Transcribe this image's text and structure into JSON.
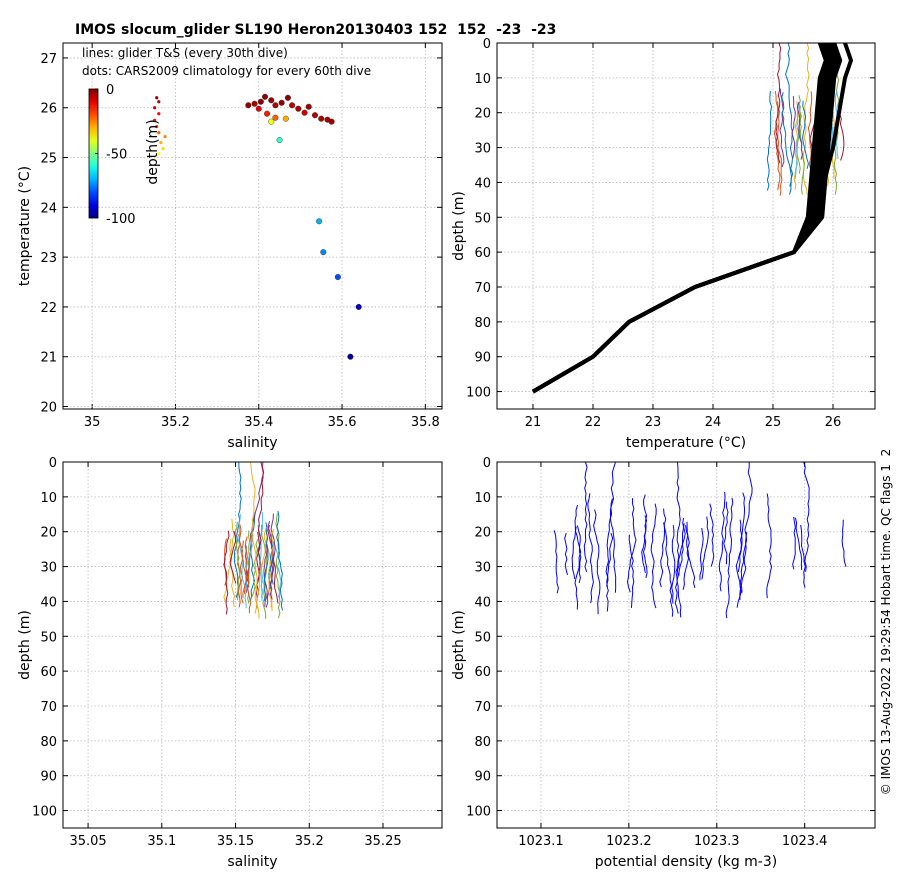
{
  "title": "IMOS slocum_glider SL190 Heron20130403 152  152  -23  -23",
  "side_text": "© IMOS 13-Aug-2022 19:29:54 Hobart time. QC flags 1  2",
  "chart_data": [
    {
      "type": "scatter",
      "id": "ts",
      "xlabel": "salinity",
      "ylabel": "temperature (°C)",
      "xlim": [
        34.93,
        35.84
      ],
      "ylim": [
        19.95,
        27.3
      ],
      "xticks": [
        35,
        35.2,
        35.4,
        35.6,
        35.8
      ],
      "xtick_labels": [
        "35",
        "35.2",
        "35.4",
        "35.6",
        "35.8"
      ],
      "yticks": [
        20,
        21,
        22,
        23,
        24,
        25,
        26,
        27
      ],
      "ytick_labels": [
        "20",
        "21",
        "22",
        "23",
        "24",
        "25",
        "26",
        "27"
      ],
      "legend": [
        "lines: glider T&S (every 30th dive)",
        "dots: CARS2009 climatology for every 60th dive"
      ],
      "colorbar": {
        "label": "depth(m)",
        "ticks": [
          0,
          -50,
          -100
        ],
        "tick_labels": [
          "0",
          "-50",
          "-100"
        ],
        "range": [
          -100,
          0
        ]
      },
      "climatology": [
        {
          "s": 35.375,
          "t": 26.05,
          "d": -2
        },
        {
          "s": 35.39,
          "t": 26.08,
          "d": -4
        },
        {
          "s": 35.405,
          "t": 26.12,
          "d": -1
        },
        {
          "s": 35.415,
          "t": 26.22,
          "d": -2
        },
        {
          "s": 35.43,
          "t": 26.15,
          "d": -3
        },
        {
          "s": 35.44,
          "t": 26.05,
          "d": -5
        },
        {
          "s": 35.455,
          "t": 26.1,
          "d": -2
        },
        {
          "s": 35.47,
          "t": 26.2,
          "d": -1
        },
        {
          "s": 35.48,
          "t": 26.05,
          "d": -6
        },
        {
          "s": 35.495,
          "t": 25.98,
          "d": -4
        },
        {
          "s": 35.51,
          "t": 25.9,
          "d": -8
        },
        {
          "s": 35.52,
          "t": 26.02,
          "d": -3
        },
        {
          "s": 35.535,
          "t": 25.85,
          "d": -6
        },
        {
          "s": 35.55,
          "t": 25.78,
          "d": -5
        },
        {
          "s": 35.565,
          "t": 25.76,
          "d": -4
        },
        {
          "s": 35.575,
          "t": 25.72,
          "d": -3
        },
        {
          "s": 35.4,
          "t": 25.98,
          "d": -10
        },
        {
          "s": 35.42,
          "t": 25.88,
          "d": -15
        },
        {
          "s": 35.44,
          "t": 25.8,
          "d": -22
        },
        {
          "s": 35.465,
          "t": 25.78,
          "d": -30
        },
        {
          "s": 35.43,
          "t": 25.72,
          "d": -38
        },
        {
          "s": 35.45,
          "t": 25.35,
          "d": -58
        },
        {
          "s": 35.545,
          "t": 23.72,
          "d": -70
        },
        {
          "s": 35.555,
          "t": 23.1,
          "d": -74
        },
        {
          "s": 35.59,
          "t": 22.6,
          "d": -80
        },
        {
          "s": 35.64,
          "t": 22.0,
          "d": -92
        },
        {
          "s": 35.62,
          "t": 21.0,
          "d": -97
        }
      ],
      "glider": [
        {
          "s": 35.155,
          "t": 26.2,
          "d": -2
        },
        {
          "s": 35.16,
          "t": 26.12,
          "d": -5
        },
        {
          "s": 35.15,
          "t": 26.0,
          "d": -8
        },
        {
          "s": 35.16,
          "t": 25.88,
          "d": -12
        },
        {
          "s": 35.15,
          "t": 25.75,
          "d": -15
        },
        {
          "s": 35.155,
          "t": 25.62,
          "d": -18
        },
        {
          "s": 35.16,
          "t": 25.5,
          "d": -22
        },
        {
          "s": 35.175,
          "t": 25.42,
          "d": -26
        },
        {
          "s": 35.165,
          "t": 25.3,
          "d": -30
        },
        {
          "s": 35.17,
          "t": 25.18,
          "d": -34
        },
        {
          "s": 35.16,
          "t": 25.08,
          "d": -38
        }
      ]
    },
    {
      "type": "line",
      "id": "temp",
      "xlabel": "temperature (°C)",
      "ylabel": "depth (m)",
      "xlim": [
        20.4,
        26.7
      ],
      "ylim": [
        0,
        105
      ],
      "xticks": [
        21,
        22,
        23,
        24,
        25,
        26
      ],
      "xtick_labels": [
        "21",
        "22",
        "23",
        "24",
        "25",
        "26"
      ],
      "yticks": [
        0,
        10,
        20,
        30,
        40,
        50,
        60,
        70,
        80,
        90,
        100
      ],
      "ytick_labels": [
        "0",
        "10",
        "20",
        "30",
        "40",
        "50",
        "60",
        "70",
        "80",
        "90",
        "100"
      ],
      "climatology_profile": {
        "depth": [
          0,
          5,
          10,
          20,
          30,
          40,
          50,
          60,
          70,
          80,
          90,
          100
        ],
        "temp": [
          25.9,
          26.0,
          25.9,
          25.85,
          25.8,
          25.75,
          25.7,
          25.35,
          23.7,
          22.6,
          22.0,
          21.0
        ]
      }
    },
    {
      "type": "line",
      "id": "sal",
      "xlabel": "salinity",
      "ylabel": "depth (m)",
      "xlim": [
        35.033,
        35.29
      ],
      "ylim": [
        0,
        105
      ],
      "xticks": [
        35.05,
        35.1,
        35.15,
        35.2,
        35.25
      ],
      "xtick_labels": [
        "35.05",
        "35.1",
        "35.15",
        "35.2",
        "35.25"
      ],
      "yticks": [
        0,
        10,
        20,
        30,
        40,
        50,
        60,
        70,
        80,
        90,
        100
      ],
      "ytick_labels": [
        "0",
        "10",
        "20",
        "30",
        "40",
        "50",
        "60",
        "70",
        "80",
        "90",
        "100"
      ]
    },
    {
      "type": "line",
      "id": "dens",
      "xlabel": "potential density (kg m-3)",
      "ylabel": "depth (m)",
      "xlim": [
        1023.05,
        1023.48
      ],
      "ylim": [
        0,
        105
      ],
      "xticks": [
        1023.1,
        1023.2,
        1023.3,
        1023.4
      ],
      "xtick_labels": [
        "1023.1",
        "1023.2",
        "1023.3",
        "1023.4"
      ],
      "yticks": [
        0,
        10,
        20,
        30,
        40,
        50,
        60,
        70,
        80,
        90,
        100
      ],
      "ytick_labels": [
        "0",
        "10",
        "20",
        "30",
        "40",
        "50",
        "60",
        "70",
        "80",
        "90",
        "100"
      ]
    }
  ]
}
